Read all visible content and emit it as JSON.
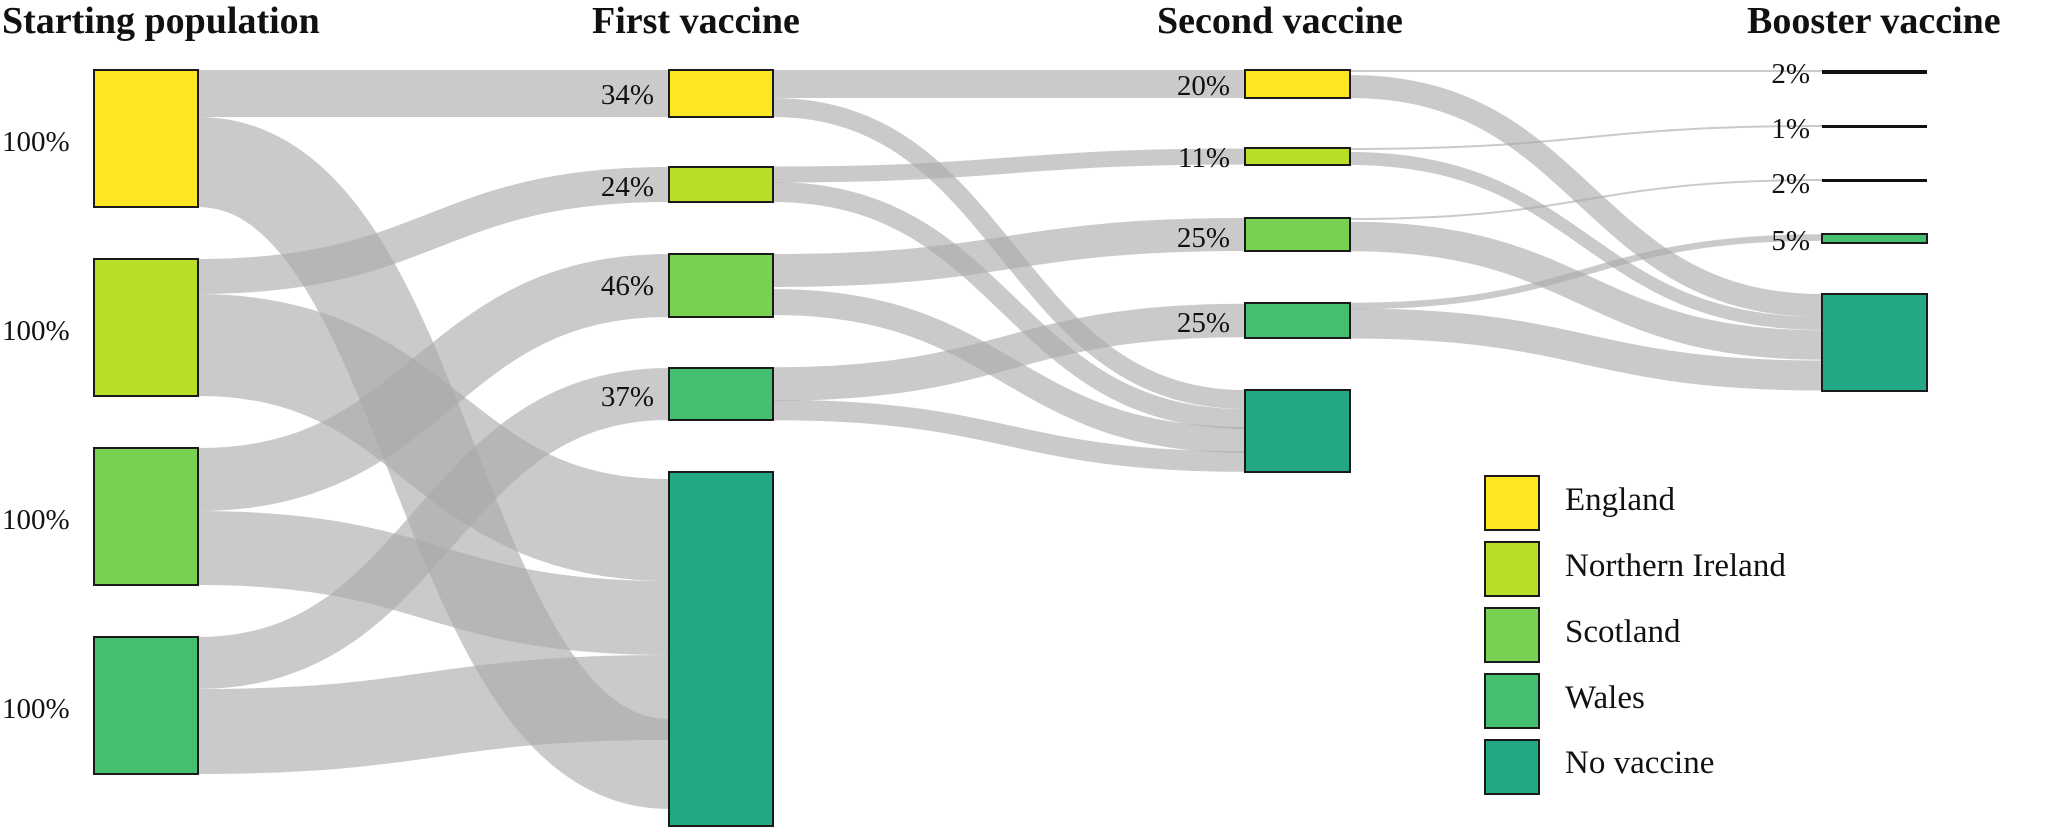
{
  "columns": [
    {
      "id": "start",
      "title": "Starting population"
    },
    {
      "id": "first",
      "title": "First vaccine"
    },
    {
      "id": "second",
      "title": "Second vaccine"
    },
    {
      "id": "booster",
      "title": "Booster vaccine"
    }
  ],
  "legend": [
    {
      "label": "England",
      "color": "#fde725"
    },
    {
      "label": "Northern Ireland",
      "color": "#b8de29"
    },
    {
      "label": "Scotland",
      "color": "#7ad151"
    },
    {
      "label": "Wales",
      "color": "#44bf70"
    },
    {
      "label": "No vaccine",
      "color": "#22a884"
    }
  ],
  "nodes": {
    "start": [
      {
        "region": "England",
        "label": "100%",
        "color": "#fde725"
      },
      {
        "region": "Northern Ireland",
        "label": "100%",
        "color": "#b8de29"
      },
      {
        "region": "Scotland",
        "label": "100%",
        "color": "#7ad151"
      },
      {
        "region": "Wales",
        "label": "100%",
        "color": "#44bf70"
      }
    ],
    "first": [
      {
        "region": "England",
        "label": "34%",
        "color": "#fde725"
      },
      {
        "region": "Northern Ireland",
        "label": "24%",
        "color": "#b8de29"
      },
      {
        "region": "Scotland",
        "label": "46%",
        "color": "#7ad151"
      },
      {
        "region": "Wales",
        "label": "37%",
        "color": "#44bf70"
      },
      {
        "region": "No vaccine",
        "label": "",
        "color": "#22a884"
      }
    ],
    "second": [
      {
        "region": "England",
        "label": "20%",
        "color": "#fde725"
      },
      {
        "region": "Northern Ireland",
        "label": "11%",
        "color": "#b8de29"
      },
      {
        "region": "Scotland",
        "label": "25%",
        "color": "#7ad151"
      },
      {
        "region": "Wales",
        "label": "25%",
        "color": "#44bf70"
      },
      {
        "region": "No vaccine",
        "label": "",
        "color": "#22a884"
      }
    ],
    "booster": [
      {
        "region": "England",
        "label": "2%",
        "color": "#fde725"
      },
      {
        "region": "Northern Ireland",
        "label": "1%",
        "color": "#b8de29"
      },
      {
        "region": "Scotland",
        "label": "2%",
        "color": "#7ad151"
      },
      {
        "region": "Wales",
        "label": "5%",
        "color": "#44bf70"
      },
      {
        "region": "No vaccine",
        "label": "",
        "color": "#22a884"
      }
    ]
  },
  "link_color": "#a9a9a9"
}
